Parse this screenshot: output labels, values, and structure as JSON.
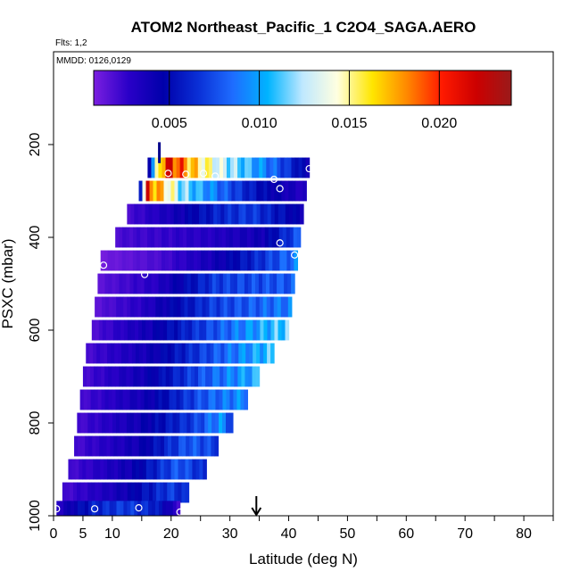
{
  "chart_data": {
    "type": "heatmap",
    "title": "ATOM2 Northeast_Pacific_1 C2O4_SAGA.AERO",
    "flights_label": "Flts: 1,2",
    "mmdd_label": "MMDD: 0126,0129",
    "xlabel": "Latitude (deg N)",
    "ylabel": "PSXC (mbar)",
    "xlim": [
      0,
      85
    ],
    "ylim": [
      1000,
      0
    ],
    "x_ticks": [
      0,
      5,
      10,
      20,
      30,
      40,
      50,
      60,
      70,
      80
    ],
    "y_ticks": [
      200,
      400,
      600,
      800,
      1000
    ],
    "colorbar": {
      "range": [
        0.0008,
        0.024
      ],
      "ticks": [
        0.005,
        0.01,
        0.015,
        0.02
      ],
      "tick_labels": [
        "0.005",
        "0.010",
        "0.015",
        "0.020"
      ],
      "colors": [
        "#7b1fe0",
        "#2a00c8",
        "#0000aa",
        "#0a2fd6",
        "#1e6cff",
        "#00b4ff",
        "#bfe8ff",
        "#ffffe0",
        "#ffe600",
        "#ff8800",
        "#ff1a00",
        "#cc0000",
        "#9a1a1a"
      ]
    },
    "marker_arrow_latitude": 34.5,
    "profile_marker_latitude": 18,
    "bands": [
      {
        "p": 250,
        "lat_min": 16.0,
        "lat_max": 43.5,
        "stops": [
          [
            0,
            0.003
          ],
          [
            0.08,
            0.018
          ],
          [
            0.14,
            0.021
          ],
          [
            0.3,
            0.016
          ],
          [
            0.45,
            0.013
          ],
          [
            0.6,
            0.011
          ],
          [
            0.8,
            0.008
          ],
          [
            1,
            0.004
          ]
        ]
      },
      {
        "p": 300,
        "lat_min": 14.5,
        "lat_max": 43.0,
        "stops": [
          [
            0,
            0.003
          ],
          [
            0.05,
            0.02
          ],
          [
            0.12,
            0.017
          ],
          [
            0.25,
            0.012
          ],
          [
            0.45,
            0.009
          ],
          [
            0.65,
            0.006
          ],
          [
            0.85,
            0.004
          ],
          [
            1,
            0.003
          ]
        ]
      },
      {
        "p": 350,
        "lat_min": 12.5,
        "lat_max": 42.5,
        "stops": [
          [
            0,
            0.002
          ],
          [
            0.3,
            0.004
          ],
          [
            0.5,
            0.006
          ],
          [
            0.7,
            0.007
          ],
          [
            1,
            0.004
          ]
        ]
      },
      {
        "p": 400,
        "lat_min": 10.5,
        "lat_max": 42.0,
        "stops": [
          [
            0,
            0.002
          ],
          [
            0.5,
            0.003
          ],
          [
            0.8,
            0.004
          ],
          [
            1,
            0.008
          ]
        ]
      },
      {
        "p": 450,
        "lat_min": 8.0,
        "lat_max": 41.5,
        "stops": [
          [
            0,
            0.001
          ],
          [
            0.3,
            0.002
          ],
          [
            0.6,
            0.004
          ],
          [
            0.85,
            0.007
          ],
          [
            1,
            0.009
          ]
        ]
      },
      {
        "p": 500,
        "lat_min": 7.5,
        "lat_max": 41.0,
        "stops": [
          [
            0,
            0.0015
          ],
          [
            0.3,
            0.003
          ],
          [
            0.6,
            0.007
          ],
          [
            1,
            0.008
          ]
        ]
      },
      {
        "p": 550,
        "lat_min": 7.0,
        "lat_max": 40.5,
        "stops": [
          [
            0,
            0.0015
          ],
          [
            0.25,
            0.003
          ],
          [
            0.6,
            0.007
          ],
          [
            1,
            0.009
          ]
        ]
      },
      {
        "p": 600,
        "lat_min": 6.5,
        "lat_max": 40.0,
        "stops": [
          [
            0,
            0.0018
          ],
          [
            0.3,
            0.004
          ],
          [
            0.65,
            0.008
          ],
          [
            1,
            0.0115
          ]
        ]
      },
      {
        "p": 650,
        "lat_min": 5.5,
        "lat_max": 37.5,
        "stops": [
          [
            0,
            0.002
          ],
          [
            0.35,
            0.004
          ],
          [
            0.7,
            0.008
          ],
          [
            1,
            0.011
          ]
        ]
      },
      {
        "p": 700,
        "lat_min": 5.0,
        "lat_max": 35.0,
        "stops": [
          [
            0,
            0.002
          ],
          [
            0.35,
            0.004
          ],
          [
            0.7,
            0.008
          ],
          [
            1,
            0.0105
          ]
        ]
      },
      {
        "p": 750,
        "lat_min": 4.5,
        "lat_max": 33.0,
        "stops": [
          [
            0,
            0.002
          ],
          [
            0.4,
            0.004
          ],
          [
            0.75,
            0.008
          ],
          [
            1,
            0.0095
          ]
        ]
      },
      {
        "p": 800,
        "lat_min": 4.0,
        "lat_max": 30.5,
        "stops": [
          [
            0,
            0.002
          ],
          [
            0.4,
            0.004
          ],
          [
            0.75,
            0.007
          ],
          [
            0.92,
            0.0095
          ],
          [
            1,
            0.007
          ]
        ]
      },
      {
        "p": 850,
        "lat_min": 3.5,
        "lat_max": 28.0,
        "stops": [
          [
            0,
            0.002
          ],
          [
            0.45,
            0.004
          ],
          [
            0.8,
            0.008
          ],
          [
            1,
            0.007
          ]
        ]
      },
      {
        "p": 900,
        "lat_min": 2.5,
        "lat_max": 26.0,
        "stops": [
          [
            0,
            0.002
          ],
          [
            0.45,
            0.004
          ],
          [
            0.8,
            0.008
          ],
          [
            1,
            0.006
          ]
        ]
      },
      {
        "p": 950,
        "lat_min": 1.5,
        "lat_max": 23.0,
        "stops": [
          [
            0,
            0.002
          ],
          [
            0.5,
            0.004
          ],
          [
            0.85,
            0.007
          ],
          [
            1,
            0.006
          ]
        ]
      },
      {
        "p": 990,
        "lat_min": 0.5,
        "lat_max": 21.5,
        "stops": [
          [
            0,
            0.003
          ],
          [
            0.3,
            0.006
          ],
          [
            0.55,
            0.007
          ],
          [
            0.8,
            0.006
          ],
          [
            1,
            0.002
          ]
        ]
      }
    ],
    "circles": [
      {
        "lat": 19.5,
        "p": 262
      },
      {
        "lat": 22.5,
        "p": 264
      },
      {
        "lat": 25.5,
        "p": 262
      },
      {
        "lat": 27.5,
        "p": 268
      },
      {
        "lat": 37.5,
        "p": 275
      },
      {
        "lat": 38.5,
        "p": 295
      },
      {
        "lat": 43.5,
        "p": 252
      },
      {
        "lat": 38.5,
        "p": 412
      },
      {
        "lat": 41.0,
        "p": 438
      },
      {
        "lat": 8.5,
        "p": 460
      },
      {
        "lat": 15.5,
        "p": 480
      },
      {
        "lat": 0.5,
        "p": 985
      },
      {
        "lat": 7.0,
        "p": 985
      },
      {
        "lat": 14.5,
        "p": 983
      },
      {
        "lat": 21.5,
        "p": 992
      }
    ]
  }
}
